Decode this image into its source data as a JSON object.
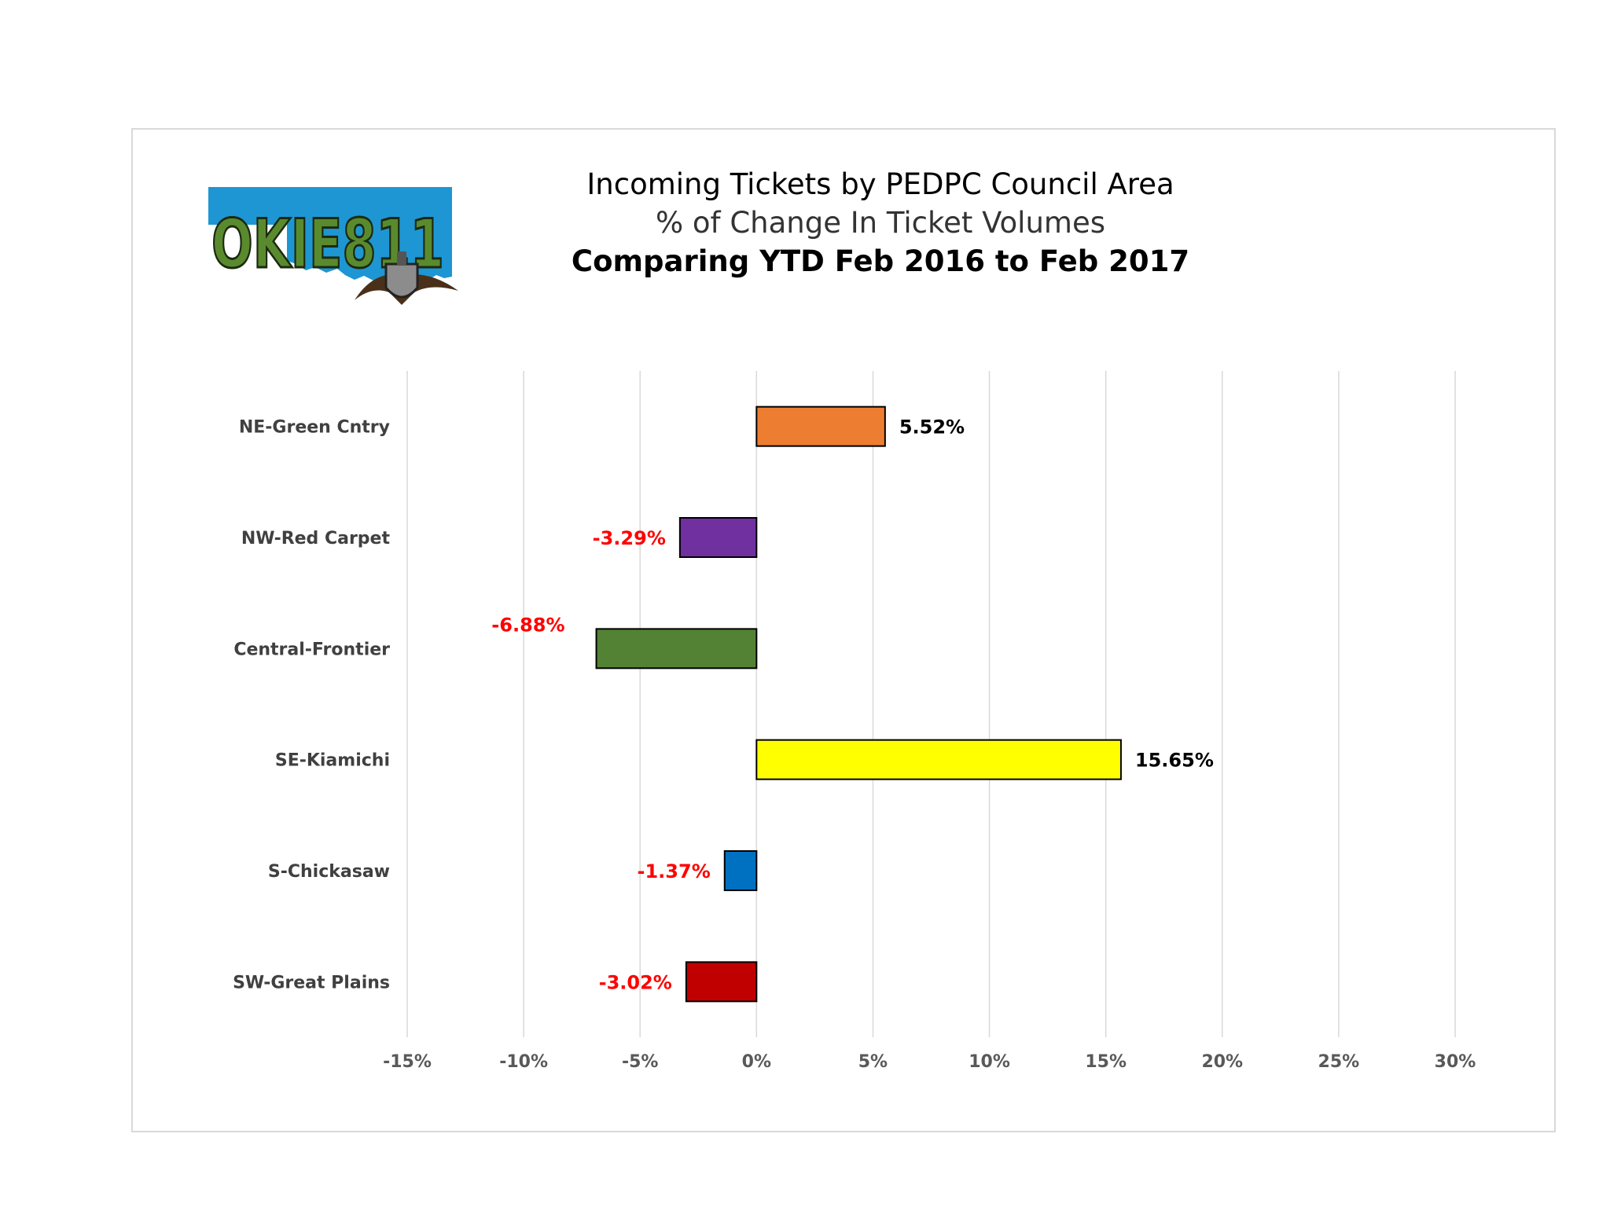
{
  "chart_data": {
    "type": "bar",
    "orientation": "horizontal",
    "title": "Incoming Tickets by PEDPC Council Area",
    "subtitle": "% of Change In Ticket Volumes",
    "subtitle2": "Comparing YTD Feb 2016 to Feb 2017",
    "categories": [
      "NE-Green Cntry",
      "NW-Red Carpet",
      "Central-Frontier",
      "SE-Kiamichi",
      "S-Chickasaw",
      "SW-Great Plains"
    ],
    "values": [
      5.52,
      -3.29,
      -6.88,
      15.65,
      -1.37,
      -3.02
    ],
    "data_labels": [
      "5.52%",
      "-3.29%",
      "-6.88%",
      "15.65%",
      "-1.37%",
      "-3.02%"
    ],
    "bar_colors": [
      "#ed7d31",
      "#7030a0",
      "#548235",
      "#ffff00",
      "#0070c0",
      "#c00000"
    ],
    "label_colors": [
      "#000000",
      "#ff0000",
      "#ff0000",
      "#000000",
      "#ff0000",
      "#ff0000"
    ],
    "xlim": [
      -15,
      30
    ],
    "x_ticks": [
      -15,
      -10,
      -5,
      0,
      5,
      10,
      15,
      20,
      25,
      30
    ],
    "x_tick_labels": [
      "-15%",
      "-10%",
      "-5%",
      "0%",
      "5%",
      "10%",
      "15%",
      "20%",
      "25%",
      "30%"
    ],
    "grid": "vertical",
    "legend": "none"
  },
  "logo": {
    "text": "OKIE811",
    "icon": "okie811-shovel-logo-icon",
    "colors": {
      "state": "#1e96d3",
      "letters": "#5a8a2e",
      "shovel": "#7a7a7a"
    }
  }
}
